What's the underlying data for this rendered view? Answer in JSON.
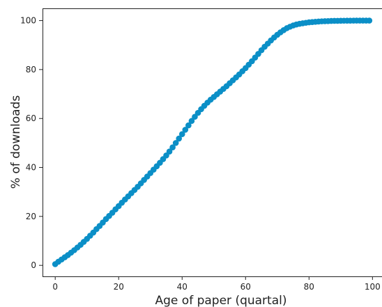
{
  "chart_data": {
    "type": "scatter",
    "title": "",
    "xlabel": "Age of paper (quartal)",
    "ylabel": "% of downloads",
    "xlim": [
      -4,
      103
    ],
    "ylim": [
      -4.5,
      105
    ],
    "xticks": [
      0,
      20,
      40,
      60,
      80,
      100
    ],
    "yticks": [
      0,
      20,
      40,
      60,
      80,
      100
    ],
    "grid": false,
    "marker_color": "#0b8fc7",
    "series": [
      {
        "x": [
          0,
          1,
          2,
          3,
          4,
          5,
          6,
          7,
          8,
          9,
          10,
          11,
          12,
          13,
          14,
          15,
          16,
          17,
          18,
          19,
          20,
          21,
          22,
          23,
          24,
          25,
          26,
          27,
          28,
          29,
          30,
          31,
          32,
          33,
          34,
          35,
          36,
          37,
          38,
          39,
          40,
          41,
          42,
          43,
          44,
          45,
          46,
          47,
          48,
          49,
          50,
          51,
          52,
          53,
          54,
          55,
          56,
          57,
          58,
          59,
          60,
          61,
          62,
          63,
          64,
          65,
          66,
          67,
          68,
          69,
          70,
          71,
          72,
          73,
          74,
          75,
          76,
          77,
          78,
          79,
          80,
          81,
          82,
          83,
          84,
          85,
          86,
          87,
          88,
          89,
          90,
          91,
          92,
          93,
          94,
          95,
          96,
          97,
          98,
          99
        ],
        "y": [
          0.5,
          1.5,
          2.4,
          3.3,
          4.2,
          5.2,
          6.2,
          7.3,
          8.4,
          9.6,
          10.8,
          12.1,
          13.4,
          14.8,
          16.1,
          17.5,
          18.9,
          20.2,
          21.5,
          22.9,
          24.2,
          25.6,
          26.9,
          28.2,
          29.5,
          30.8,
          32.1,
          33.5,
          34.9,
          36.3,
          37.7,
          39.1,
          40.5,
          41.9,
          43.4,
          44.9,
          46.5,
          48.2,
          50.0,
          51.8,
          53.6,
          55.4,
          57.2,
          59.0,
          60.7,
          62.3,
          63.8,
          65.2,
          66.5,
          67.7,
          68.8,
          69.9,
          71.0,
          72.1,
          73.2,
          74.4,
          75.6,
          76.8,
          78.0,
          79.3,
          80.6,
          82.0,
          83.4,
          84.9,
          86.4,
          87.9,
          89.3,
          90.6,
          91.9,
          93.1,
          94.2,
          95.2,
          96.1,
          96.9,
          97.5,
          98.0,
          98.4,
          98.7,
          98.9,
          99.1,
          99.3,
          99.4,
          99.5,
          99.6,
          99.7,
          99.75,
          99.8,
          99.85,
          99.9,
          99.9,
          99.93,
          99.95,
          99.97,
          99.98,
          99.99,
          100.0,
          100.0,
          100.0,
          100.0,
          100.0
        ]
      }
    ]
  }
}
